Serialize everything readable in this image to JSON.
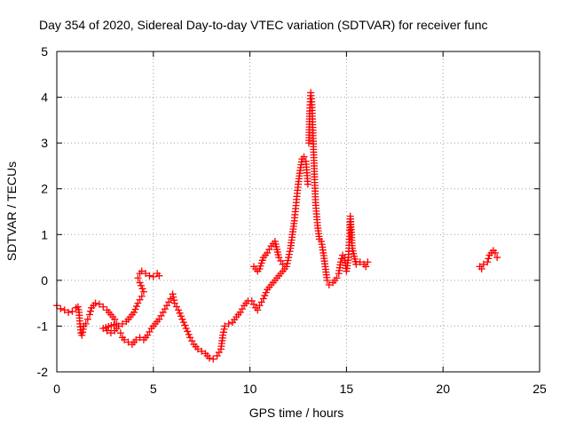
{
  "chart_data": {
    "type": "scatter",
    "title": "Day 354 of 2020, Sidereal Day-to-day VTEC variation (SDTVAR) for receiver func",
    "xlabel": "GPS time / hours",
    "ylabel": "SDTVAR / TECUs",
    "xlim": [
      0,
      25
    ],
    "ylim": [
      -2,
      5
    ],
    "xticks": [
      0,
      5,
      10,
      15,
      20,
      25
    ],
    "yticks": [
      -2,
      -1,
      0,
      1,
      2,
      3,
      4,
      5
    ],
    "grid": true,
    "marker": "+",
    "series": [
      {
        "name": "SDTVAR",
        "color": "#ff0000",
        "points": [
          [
            0.0,
            -0.55
          ],
          [
            0.2,
            -0.62
          ],
          [
            0.4,
            -0.65
          ],
          [
            0.6,
            -0.7
          ],
          [
            0.8,
            -0.68
          ],
          [
            1.0,
            -0.6
          ],
          [
            1.1,
            -0.58
          ],
          [
            1.15,
            -0.7
          ],
          [
            1.2,
            -0.95
          ],
          [
            1.25,
            -1.15
          ],
          [
            1.3,
            -1.2
          ],
          [
            1.4,
            -1.0
          ],
          [
            1.5,
            -0.95
          ],
          [
            1.6,
            -0.85
          ],
          [
            1.7,
            -0.75
          ],
          [
            1.8,
            -0.6
          ],
          [
            1.9,
            -0.55
          ],
          [
            2.0,
            -0.5
          ],
          [
            2.2,
            -0.52
          ],
          [
            2.4,
            -0.58
          ],
          [
            2.6,
            -0.65
          ],
          [
            2.8,
            -0.75
          ],
          [
            3.0,
            -0.85
          ],
          [
            3.1,
            -0.95
          ],
          [
            2.4,
            -1.05
          ],
          [
            2.6,
            -1.1
          ],
          [
            2.8,
            -1.15
          ],
          [
            3.0,
            -1.1
          ],
          [
            3.2,
            -1.0
          ],
          [
            3.4,
            -0.95
          ],
          [
            3.6,
            -0.9
          ],
          [
            3.8,
            -0.8
          ],
          [
            4.0,
            -0.7
          ],
          [
            4.2,
            -0.5
          ],
          [
            4.4,
            -0.35
          ],
          [
            4.5,
            -0.25
          ],
          [
            4.3,
            -0.05
          ],
          [
            4.2,
            0.05
          ],
          [
            4.3,
            0.15
          ],
          [
            4.4,
            0.2
          ],
          [
            4.6,
            0.15
          ],
          [
            4.8,
            0.1
          ],
          [
            5.0,
            0.08
          ],
          [
            5.2,
            0.15
          ],
          [
            5.3,
            0.1
          ],
          [
            3.3,
            -1.15
          ],
          [
            3.4,
            -1.25
          ],
          [
            3.5,
            -1.3
          ],
          [
            3.7,
            -1.35
          ],
          [
            3.9,
            -1.4
          ],
          [
            4.1,
            -1.3
          ],
          [
            4.3,
            -1.25
          ],
          [
            4.5,
            -1.3
          ],
          [
            4.7,
            -1.2
          ],
          [
            4.9,
            -1.05
          ],
          [
            5.1,
            -0.95
          ],
          [
            5.3,
            -0.85
          ],
          [
            5.5,
            -0.7
          ],
          [
            5.7,
            -0.55
          ],
          [
            5.9,
            -0.4
          ],
          [
            6.0,
            -0.3
          ],
          [
            6.1,
            -0.5
          ],
          [
            6.3,
            -0.65
          ],
          [
            6.5,
            -0.85
          ],
          [
            6.7,
            -1.05
          ],
          [
            6.9,
            -1.25
          ],
          [
            7.1,
            -1.4
          ],
          [
            7.3,
            -1.5
          ],
          [
            7.5,
            -1.55
          ],
          [
            7.7,
            -1.6
          ],
          [
            7.9,
            -1.7
          ],
          [
            8.1,
            -1.72
          ],
          [
            8.3,
            -1.65
          ],
          [
            8.5,
            -1.5
          ],
          [
            8.6,
            -1.2
          ],
          [
            8.7,
            -1.0
          ],
          [
            8.9,
            -0.95
          ],
          [
            9.1,
            -0.92
          ],
          [
            9.3,
            -0.8
          ],
          [
            9.5,
            -0.7
          ],
          [
            9.7,
            -0.55
          ],
          [
            9.9,
            -0.45
          ],
          [
            10.1,
            -0.45
          ],
          [
            10.3,
            -0.6
          ],
          [
            10.4,
            -0.65
          ],
          [
            10.5,
            -0.55
          ],
          [
            10.7,
            -0.4
          ],
          [
            10.9,
            -0.2
          ],
          [
            11.1,
            -0.1
          ],
          [
            11.3,
            0.0
          ],
          [
            11.5,
            0.1
          ],
          [
            11.7,
            0.2
          ],
          [
            11.9,
            0.3
          ],
          [
            12.0,
            0.5
          ],
          [
            12.1,
            0.7
          ],
          [
            12.2,
            1.0
          ],
          [
            12.3,
            1.3
          ],
          [
            12.4,
            1.7
          ],
          [
            12.5,
            2.1
          ],
          [
            12.6,
            2.4
          ],
          [
            12.7,
            2.65
          ],
          [
            12.8,
            2.7
          ],
          [
            12.9,
            2.6
          ],
          [
            13.0,
            2.1
          ],
          [
            13.05,
            3.0
          ],
          [
            13.1,
            3.7
          ],
          [
            13.15,
            4.1
          ],
          [
            13.2,
            3.9
          ],
          [
            13.25,
            3.4
          ],
          [
            13.3,
            2.8
          ],
          [
            13.35,
            2.2
          ],
          [
            13.4,
            1.7
          ],
          [
            13.5,
            1.2
          ],
          [
            13.6,
            0.9
          ],
          [
            13.7,
            0.85
          ],
          [
            13.8,
            0.6
          ],
          [
            13.9,
            0.3
          ],
          [
            14.0,
            0.0
          ],
          [
            14.1,
            -0.1
          ],
          [
            14.3,
            -0.05
          ],
          [
            14.5,
            0.05
          ],
          [
            14.6,
            0.15
          ],
          [
            14.7,
            0.4
          ],
          [
            14.8,
            0.55
          ],
          [
            14.9,
            0.5
          ],
          [
            15.0,
            0.2
          ],
          [
            15.1,
            0.5
          ],
          [
            15.15,
            0.9
          ],
          [
            15.2,
            1.4
          ],
          [
            15.3,
            0.7
          ],
          [
            15.5,
            0.35
          ],
          [
            15.7,
            0.4
          ],
          [
            15.9,
            0.35
          ],
          [
            16.0,
            0.3
          ],
          [
            16.1,
            0.4
          ],
          [
            10.2,
            0.3
          ],
          [
            10.4,
            0.2
          ],
          [
            10.5,
            0.25
          ],
          [
            10.7,
            0.5
          ],
          [
            10.9,
            0.6
          ],
          [
            11.1,
            0.75
          ],
          [
            11.3,
            0.85
          ],
          [
            11.5,
            0.5
          ],
          [
            11.7,
            0.35
          ],
          [
            21.9,
            0.3
          ],
          [
            22.0,
            0.25
          ],
          [
            22.1,
            0.35
          ],
          [
            22.3,
            0.4
          ],
          [
            22.4,
            0.55
          ],
          [
            22.5,
            0.6
          ],
          [
            22.6,
            0.65
          ],
          [
            22.7,
            0.6
          ],
          [
            22.8,
            0.5
          ]
        ]
      }
    ]
  }
}
